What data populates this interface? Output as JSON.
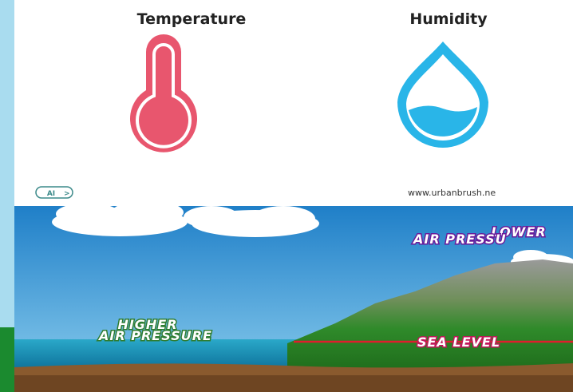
{
  "top_panel": {
    "labels": [
      "Temperature",
      "Humidity"
    ],
    "badge": "AI",
    "watermark": "www.urbanbrush.ne"
  },
  "scene": {
    "lower_label": [
      "LOWER",
      "AIR PRESSU"
    ],
    "higher_label": [
      "HIGHER",
      "AIR PRESSURE"
    ],
    "sea_level": "SEA LEVEL"
  }
}
